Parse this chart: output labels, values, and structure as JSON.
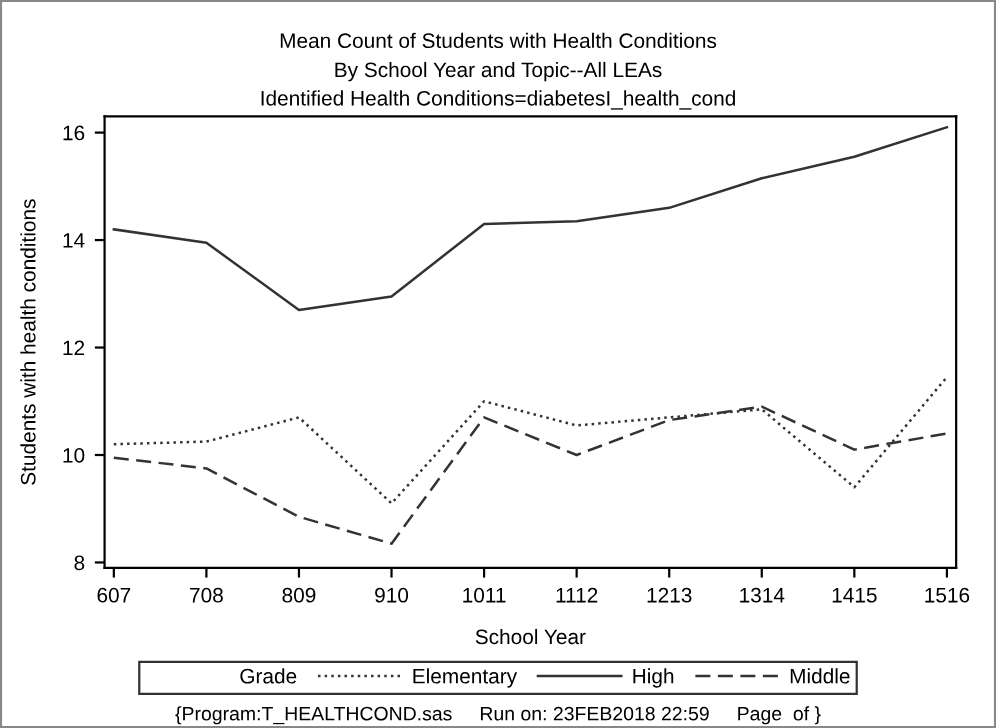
{
  "chart_data": {
    "type": "line",
    "title": "Mean Count of Students with Health Conditions",
    "subtitle": "By School Year and Topic--All LEAs\nIdentified Health Conditions=diabetesI_health_cond",
    "xlabel": "School Year",
    "ylabel": "Students with health conditions",
    "legend_title": "Grade",
    "categories": [
      "607",
      "708",
      "809",
      "910",
      "1011",
      "1112",
      "1213",
      "1314",
      "1415",
      "1516"
    ],
    "series": [
      {
        "name": "Elementary",
        "color": "#333333",
        "line_style": "dotted",
        "values": [
          10.2,
          10.25,
          10.7,
          9.1,
          11.0,
          10.55,
          10.7,
          10.85,
          9.4,
          11.45
        ]
      },
      {
        "name": "High",
        "color": "#333333",
        "line_style": "solid",
        "values": [
          14.2,
          13.95,
          12.7,
          12.95,
          14.3,
          14.35,
          14.6,
          15.15,
          15.55,
          16.1
        ]
      },
      {
        "name": "Middle",
        "color": "#333333",
        "line_style": "dashed",
        "values": [
          9.95,
          9.75,
          8.85,
          8.35,
          10.7,
          10.0,
          10.65,
          10.9,
          10.1,
          10.4
        ]
      }
    ],
    "ylim": [
      7.9,
      16.3
    ],
    "yticks": [
      8,
      10,
      12,
      14,
      16
    ],
    "grid": false,
    "legend": "bottom",
    "annotations": [
      "{Program:T_HEALTHCOND.sas     Run on: 23FEB2018 22:59     Page  of }"
    ]
  }
}
